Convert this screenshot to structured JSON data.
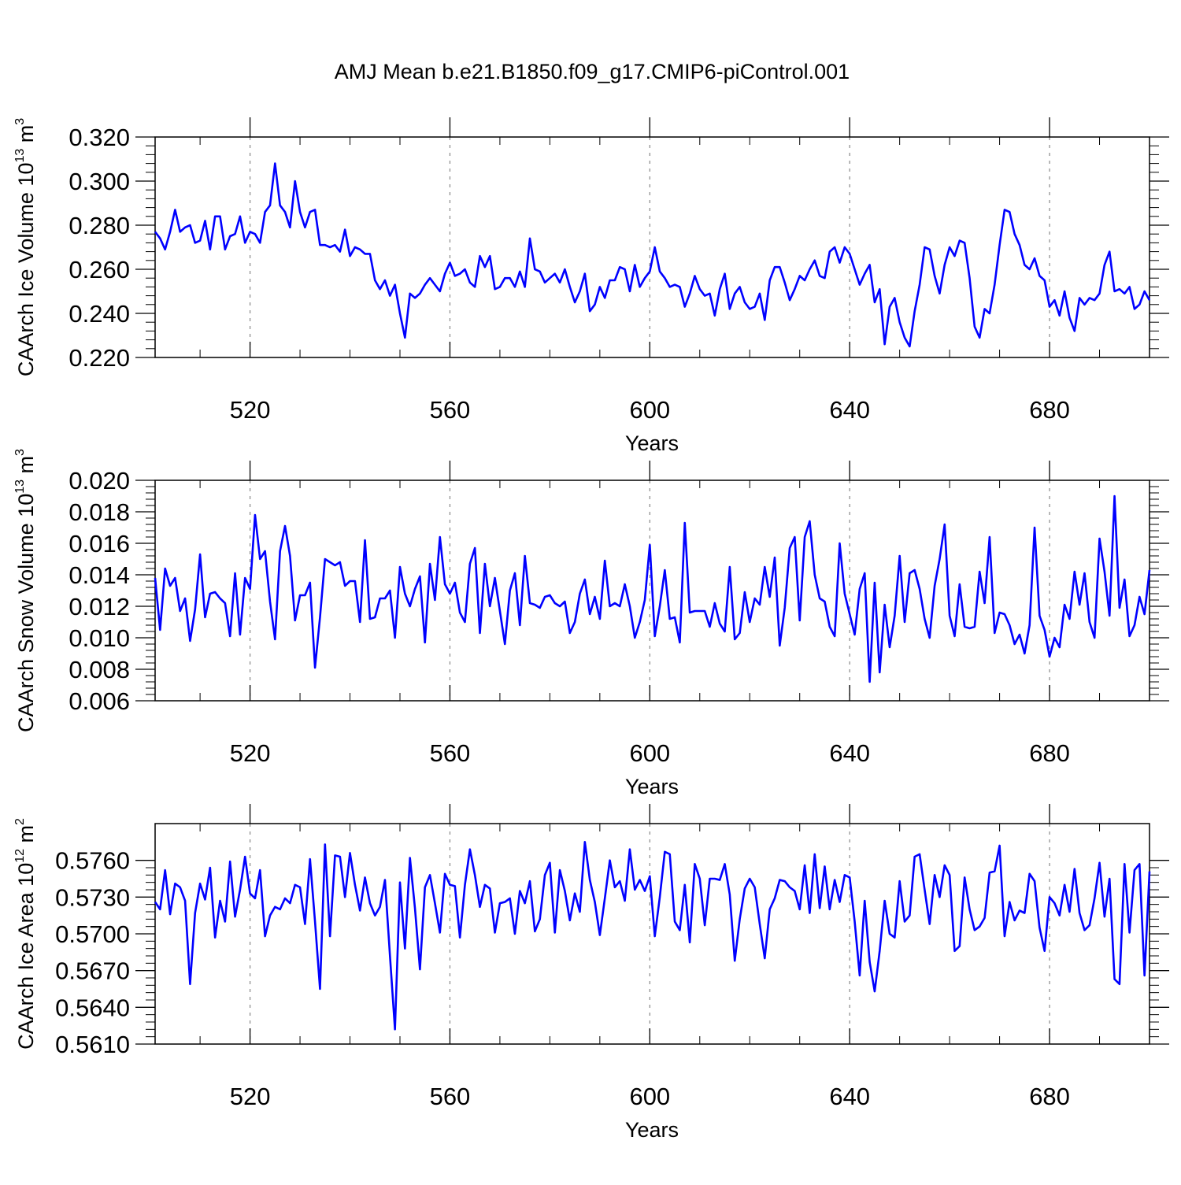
{
  "title": "AMJ Mean b.e21.B1850.f09_g17.CMIP6-piControl.001",
  "chart_data": [
    {
      "type": "line",
      "name": "ice-volume",
      "title": "AMJ Mean b.e21.B1850.f09_g17.CMIP6-piControl.001",
      "ylabel": "CAArch Ice Volume 10",
      "ylabel_exp": "13",
      "ylabel_unit": "m",
      "ylabel_unit_exp": "3",
      "xlabel": "Years",
      "xlim": [
        501,
        700
      ],
      "ylim": [
        0.22,
        0.32
      ],
      "xticks": [
        520,
        560,
        600,
        640,
        680
      ],
      "xtick_labels": [
        "520",
        "560",
        "600",
        "640",
        "680"
      ],
      "yticks": [
        0.22,
        0.24,
        0.26,
        0.28,
        0.3,
        0.32
      ],
      "ytick_labels": [
        "0.220",
        "0.240",
        "0.260",
        "0.280",
        "0.300",
        "0.320"
      ],
      "line_color": "#0000ff",
      "x_start": 501,
      "values": [
        0.277,
        0.274,
        0.269,
        0.277,
        0.287,
        0.277,
        0.279,
        0.28,
        0.272,
        0.273,
        0.282,
        0.269,
        0.284,
        0.284,
        0.269,
        0.275,
        0.276,
        0.284,
        0.272,
        0.277,
        0.276,
        0.272,
        0.286,
        0.289,
        0.308,
        0.289,
        0.286,
        0.279,
        0.3,
        0.286,
        0.279,
        0.286,
        0.287,
        0.271,
        0.271,
        0.27,
        0.271,
        0.268,
        0.278,
        0.266,
        0.27,
        0.269,
        0.267,
        0.267,
        0.255,
        0.251,
        0.255,
        0.248,
        0.253,
        0.24,
        0.229,
        0.249,
        0.247,
        0.249,
        0.253,
        0.256,
        0.253,
        0.25,
        0.258,
        0.263,
        0.257,
        0.258,
        0.26,
        0.254,
        0.252,
        0.266,
        0.261,
        0.266,
        0.251,
        0.252,
        0.256,
        0.256,
        0.252,
        0.259,
        0.252,
        0.274,
        0.26,
        0.259,
        0.254,
        0.256,
        0.258,
        0.254,
        0.26,
        0.252,
        0.245,
        0.25,
        0.258,
        0.241,
        0.244,
        0.252,
        0.247,
        0.255,
        0.255,
        0.261,
        0.26,
        0.25,
        0.262,
        0.252,
        0.256,
        0.259,
        0.27,
        0.259,
        0.256,
        0.252,
        0.253,
        0.252,
        0.243,
        0.249,
        0.257,
        0.251,
        0.248,
        0.249,
        0.239,
        0.251,
        0.258,
        0.242,
        0.249,
        0.252,
        0.245,
        0.242,
        0.243,
        0.249,
        0.237,
        0.255,
        0.261,
        0.261,
        0.254,
        0.246,
        0.251,
        0.257,
        0.255,
        0.26,
        0.264,
        0.257,
        0.256,
        0.268,
        0.27,
        0.263,
        0.27,
        0.267,
        0.26,
        0.253,
        0.258,
        0.262,
        0.245,
        0.251,
        0.226,
        0.243,
        0.247,
        0.236,
        0.229,
        0.225,
        0.241,
        0.253,
        0.27,
        0.269,
        0.257,
        0.249,
        0.262,
        0.27,
        0.266,
        0.273,
        0.272,
        0.256,
        0.234,
        0.229,
        0.242,
        0.24,
        0.253,
        0.271,
        0.287,
        0.286,
        0.276,
        0.271,
        0.262,
        0.26,
        0.265,
        0.257,
        0.255,
        0.243,
        0.246,
        0.239,
        0.25,
        0.238,
        0.232,
        0.247,
        0.244,
        0.247,
        0.246,
        0.249,
        0.262,
        0.268,
        0.25,
        0.251,
        0.249,
        0.252,
        0.242,
        0.244,
        0.25,
        0.246
      ]
    },
    {
      "type": "line",
      "name": "snow-volume",
      "ylabel": "CAArch Snow Volume 10",
      "ylabel_exp": "13",
      "ylabel_unit": "m",
      "ylabel_unit_exp": "3",
      "xlabel": "Years",
      "xlim": [
        501,
        700
      ],
      "ylim": [
        0.006,
        0.02
      ],
      "xticks": [
        520,
        560,
        600,
        640,
        680
      ],
      "xtick_labels": [
        "520",
        "560",
        "600",
        "640",
        "680"
      ],
      "yticks": [
        0.006,
        0.008,
        0.01,
        0.012,
        0.014,
        0.016,
        0.018,
        0.02
      ],
      "ytick_labels": [
        "0.006",
        "0.008",
        "0.010",
        "0.012",
        "0.014",
        "0.016",
        "0.018",
        "0.020"
      ],
      "line_color": "#0000ff",
      "x_start": 501,
      "values": [
        0.0138,
        0.0105,
        0.0144,
        0.0133,
        0.0138,
        0.0117,
        0.0125,
        0.0098,
        0.0118,
        0.0153,
        0.0113,
        0.0128,
        0.0129,
        0.0125,
        0.0122,
        0.0101,
        0.0141,
        0.0102,
        0.0138,
        0.0131,
        0.0178,
        0.015,
        0.0155,
        0.0123,
        0.0099,
        0.0155,
        0.0171,
        0.0152,
        0.0111,
        0.0127,
        0.0127,
        0.0135,
        0.0081,
        0.0113,
        0.015,
        0.0148,
        0.0146,
        0.0148,
        0.0133,
        0.0136,
        0.0136,
        0.011,
        0.0162,
        0.0112,
        0.0113,
        0.0125,
        0.0125,
        0.013,
        0.01,
        0.0145,
        0.0128,
        0.012,
        0.0131,
        0.0139,
        0.0097,
        0.0147,
        0.0124,
        0.0164,
        0.0134,
        0.0128,
        0.0135,
        0.0116,
        0.011,
        0.0147,
        0.0157,
        0.0103,
        0.0147,
        0.012,
        0.0138,
        0.0117,
        0.0096,
        0.013,
        0.0141,
        0.0108,
        0.0152,
        0.0122,
        0.0121,
        0.0119,
        0.0126,
        0.0127,
        0.0122,
        0.012,
        0.0123,
        0.0103,
        0.011,
        0.0128,
        0.0137,
        0.0115,
        0.0126,
        0.0112,
        0.0149,
        0.012,
        0.0122,
        0.012,
        0.0134,
        0.012,
        0.01,
        0.011,
        0.0124,
        0.0159,
        0.0101,
        0.012,
        0.0143,
        0.0112,
        0.0113,
        0.0097,
        0.0173,
        0.0116,
        0.0117,
        0.0117,
        0.0117,
        0.0107,
        0.0122,
        0.0109,
        0.0104,
        0.0145,
        0.0099,
        0.0103,
        0.0129,
        0.011,
        0.0125,
        0.0121,
        0.0145,
        0.0126,
        0.0151,
        0.0095,
        0.0119,
        0.0157,
        0.0164,
        0.0111,
        0.0164,
        0.0174,
        0.014,
        0.0125,
        0.0123,
        0.0107,
        0.0101,
        0.016,
        0.0128,
        0.0115,
        0.0102,
        0.0131,
        0.0141,
        0.0072,
        0.0135,
        0.0078,
        0.0121,
        0.0094,
        0.0114,
        0.0152,
        0.011,
        0.0141,
        0.0143,
        0.0131,
        0.0112,
        0.01,
        0.0133,
        0.015,
        0.0172,
        0.0114,
        0.0101,
        0.0134,
        0.0107,
        0.0106,
        0.0107,
        0.0142,
        0.0122,
        0.0164,
        0.0103,
        0.0116,
        0.0115,
        0.0108,
        0.0096,
        0.0102,
        0.009,
        0.0108,
        0.017,
        0.0114,
        0.0105,
        0.0088,
        0.01,
        0.0094,
        0.0121,
        0.0112,
        0.0142,
        0.0121,
        0.0141,
        0.011,
        0.01,
        0.0163,
        0.0142,
        0.0114,
        0.019,
        0.0119,
        0.0137,
        0.0101,
        0.0108,
        0.0126,
        0.0115,
        0.0143
      ]
    },
    {
      "type": "line",
      "name": "ice-area",
      "ylabel": "CAArch Ice Area 10",
      "ylabel_exp": "12",
      "ylabel_unit": "m",
      "ylabel_unit_exp": "2",
      "xlabel": "Years",
      "xlim": [
        501,
        700
      ],
      "ylim": [
        0.561,
        0.579
      ],
      "xticks": [
        520,
        560,
        600,
        640,
        680
      ],
      "xtick_labels": [
        "520",
        "560",
        "600",
        "640",
        "680"
      ],
      "yticks": [
        0.561,
        0.564,
        0.567,
        0.57,
        0.573,
        0.576
      ],
      "ytick_labels": [
        "0.5610",
        "0.5640",
        "0.5670",
        "0.5700",
        "0.5730",
        "0.5760"
      ],
      "line_color": "#0000ff",
      "x_start": 501,
      "values": [
        0.5726,
        0.572,
        0.5752,
        0.5716,
        0.5741,
        0.5738,
        0.5727,
        0.5659,
        0.5717,
        0.5741,
        0.5728,
        0.5754,
        0.5697,
        0.5727,
        0.571,
        0.5759,
        0.5714,
        0.5736,
        0.5763,
        0.5733,
        0.5729,
        0.5752,
        0.5698,
        0.5715,
        0.5722,
        0.572,
        0.5729,
        0.5725,
        0.574,
        0.5738,
        0.5708,
        0.5761,
        0.571,
        0.5655,
        0.5773,
        0.5698,
        0.5764,
        0.5763,
        0.573,
        0.5766,
        0.574,
        0.5719,
        0.5746,
        0.5725,
        0.5715,
        0.5722,
        0.5744,
        0.5682,
        0.5622,
        0.5742,
        0.5688,
        0.5762,
        0.5721,
        0.5671,
        0.5738,
        0.5748,
        0.5725,
        0.5701,
        0.5749,
        0.574,
        0.5739,
        0.5697,
        0.574,
        0.5769,
        0.5748,
        0.5722,
        0.574,
        0.5737,
        0.5701,
        0.5725,
        0.5726,
        0.5729,
        0.57,
        0.5735,
        0.5725,
        0.5743,
        0.5702,
        0.5712,
        0.5748,
        0.5758,
        0.5701,
        0.5752,
        0.5735,
        0.5711,
        0.5733,
        0.5718,
        0.5775,
        0.5744,
        0.5726,
        0.5699,
        0.5729,
        0.576,
        0.5738,
        0.5743,
        0.5727,
        0.5769,
        0.5736,
        0.5744,
        0.5735,
        0.5747,
        0.5698,
        0.573,
        0.5767,
        0.5765,
        0.571,
        0.5703,
        0.574,
        0.5693,
        0.5757,
        0.5745,
        0.5707,
        0.5745,
        0.5745,
        0.5744,
        0.5757,
        0.5732,
        0.5678,
        0.5712,
        0.5737,
        0.5745,
        0.5738,
        0.5708,
        0.568,
        0.572,
        0.5729,
        0.5744,
        0.5743,
        0.5738,
        0.5735,
        0.572,
        0.5756,
        0.5717,
        0.5765,
        0.5721,
        0.5755,
        0.572,
        0.5744,
        0.5726,
        0.5748,
        0.5746,
        0.571,
        0.5666,
        0.5727,
        0.5677,
        0.5653,
        0.5686,
        0.5727,
        0.57,
        0.5697,
        0.5743,
        0.571,
        0.5715,
        0.5763,
        0.5765,
        0.5736,
        0.5708,
        0.5748,
        0.573,
        0.5756,
        0.5748,
        0.5686,
        0.569,
        0.5746,
        0.572,
        0.5703,
        0.5706,
        0.5713,
        0.575,
        0.5751,
        0.5772,
        0.5698,
        0.5726,
        0.5711,
        0.5719,
        0.5717,
        0.5749,
        0.5743,
        0.5705,
        0.5686,
        0.573,
        0.5725,
        0.5715,
        0.574,
        0.5718,
        0.5753,
        0.5717,
        0.5703,
        0.5707,
        0.5729,
        0.5758,
        0.5714,
        0.5745,
        0.5663,
        0.5659,
        0.5757,
        0.5701,
        0.5752,
        0.5757,
        0.5666,
        0.5751
      ]
    }
  ]
}
